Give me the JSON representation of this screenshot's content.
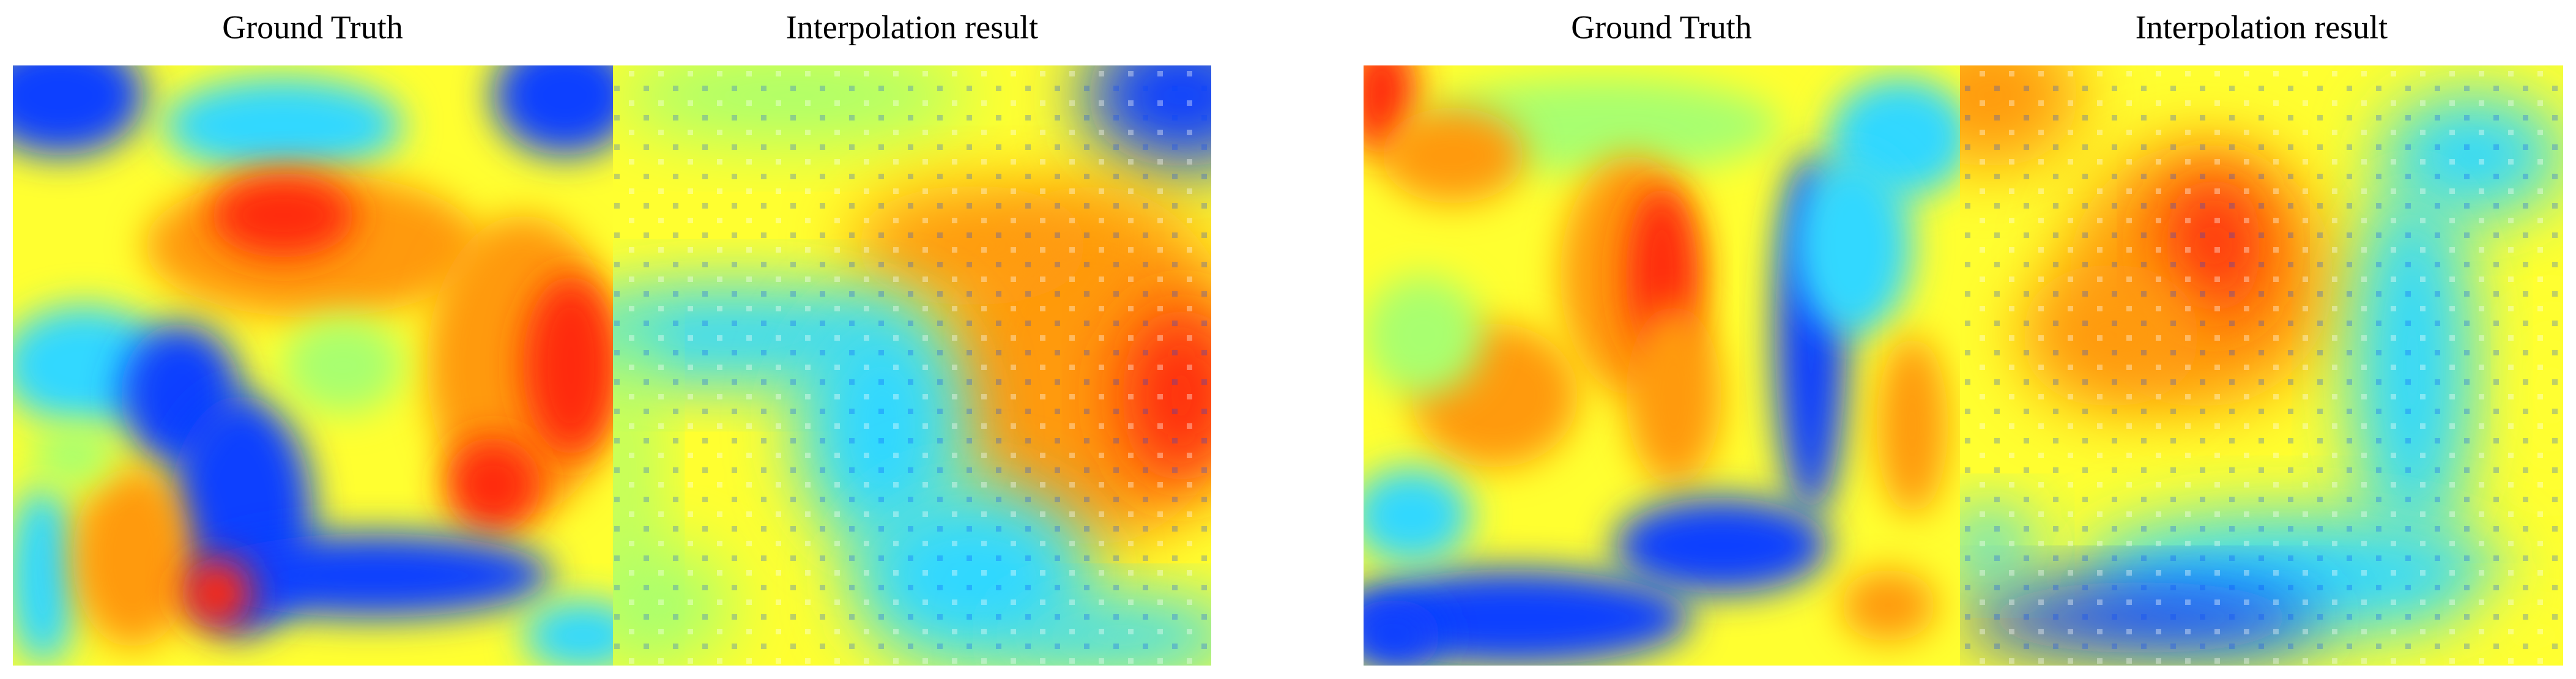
{
  "panels": [
    {
      "left_title": "Ground Truth",
      "right_title": "Interpolation result"
    },
    {
      "left_title": "Ground Truth",
      "right_title": "Interpolation result"
    }
  ]
}
